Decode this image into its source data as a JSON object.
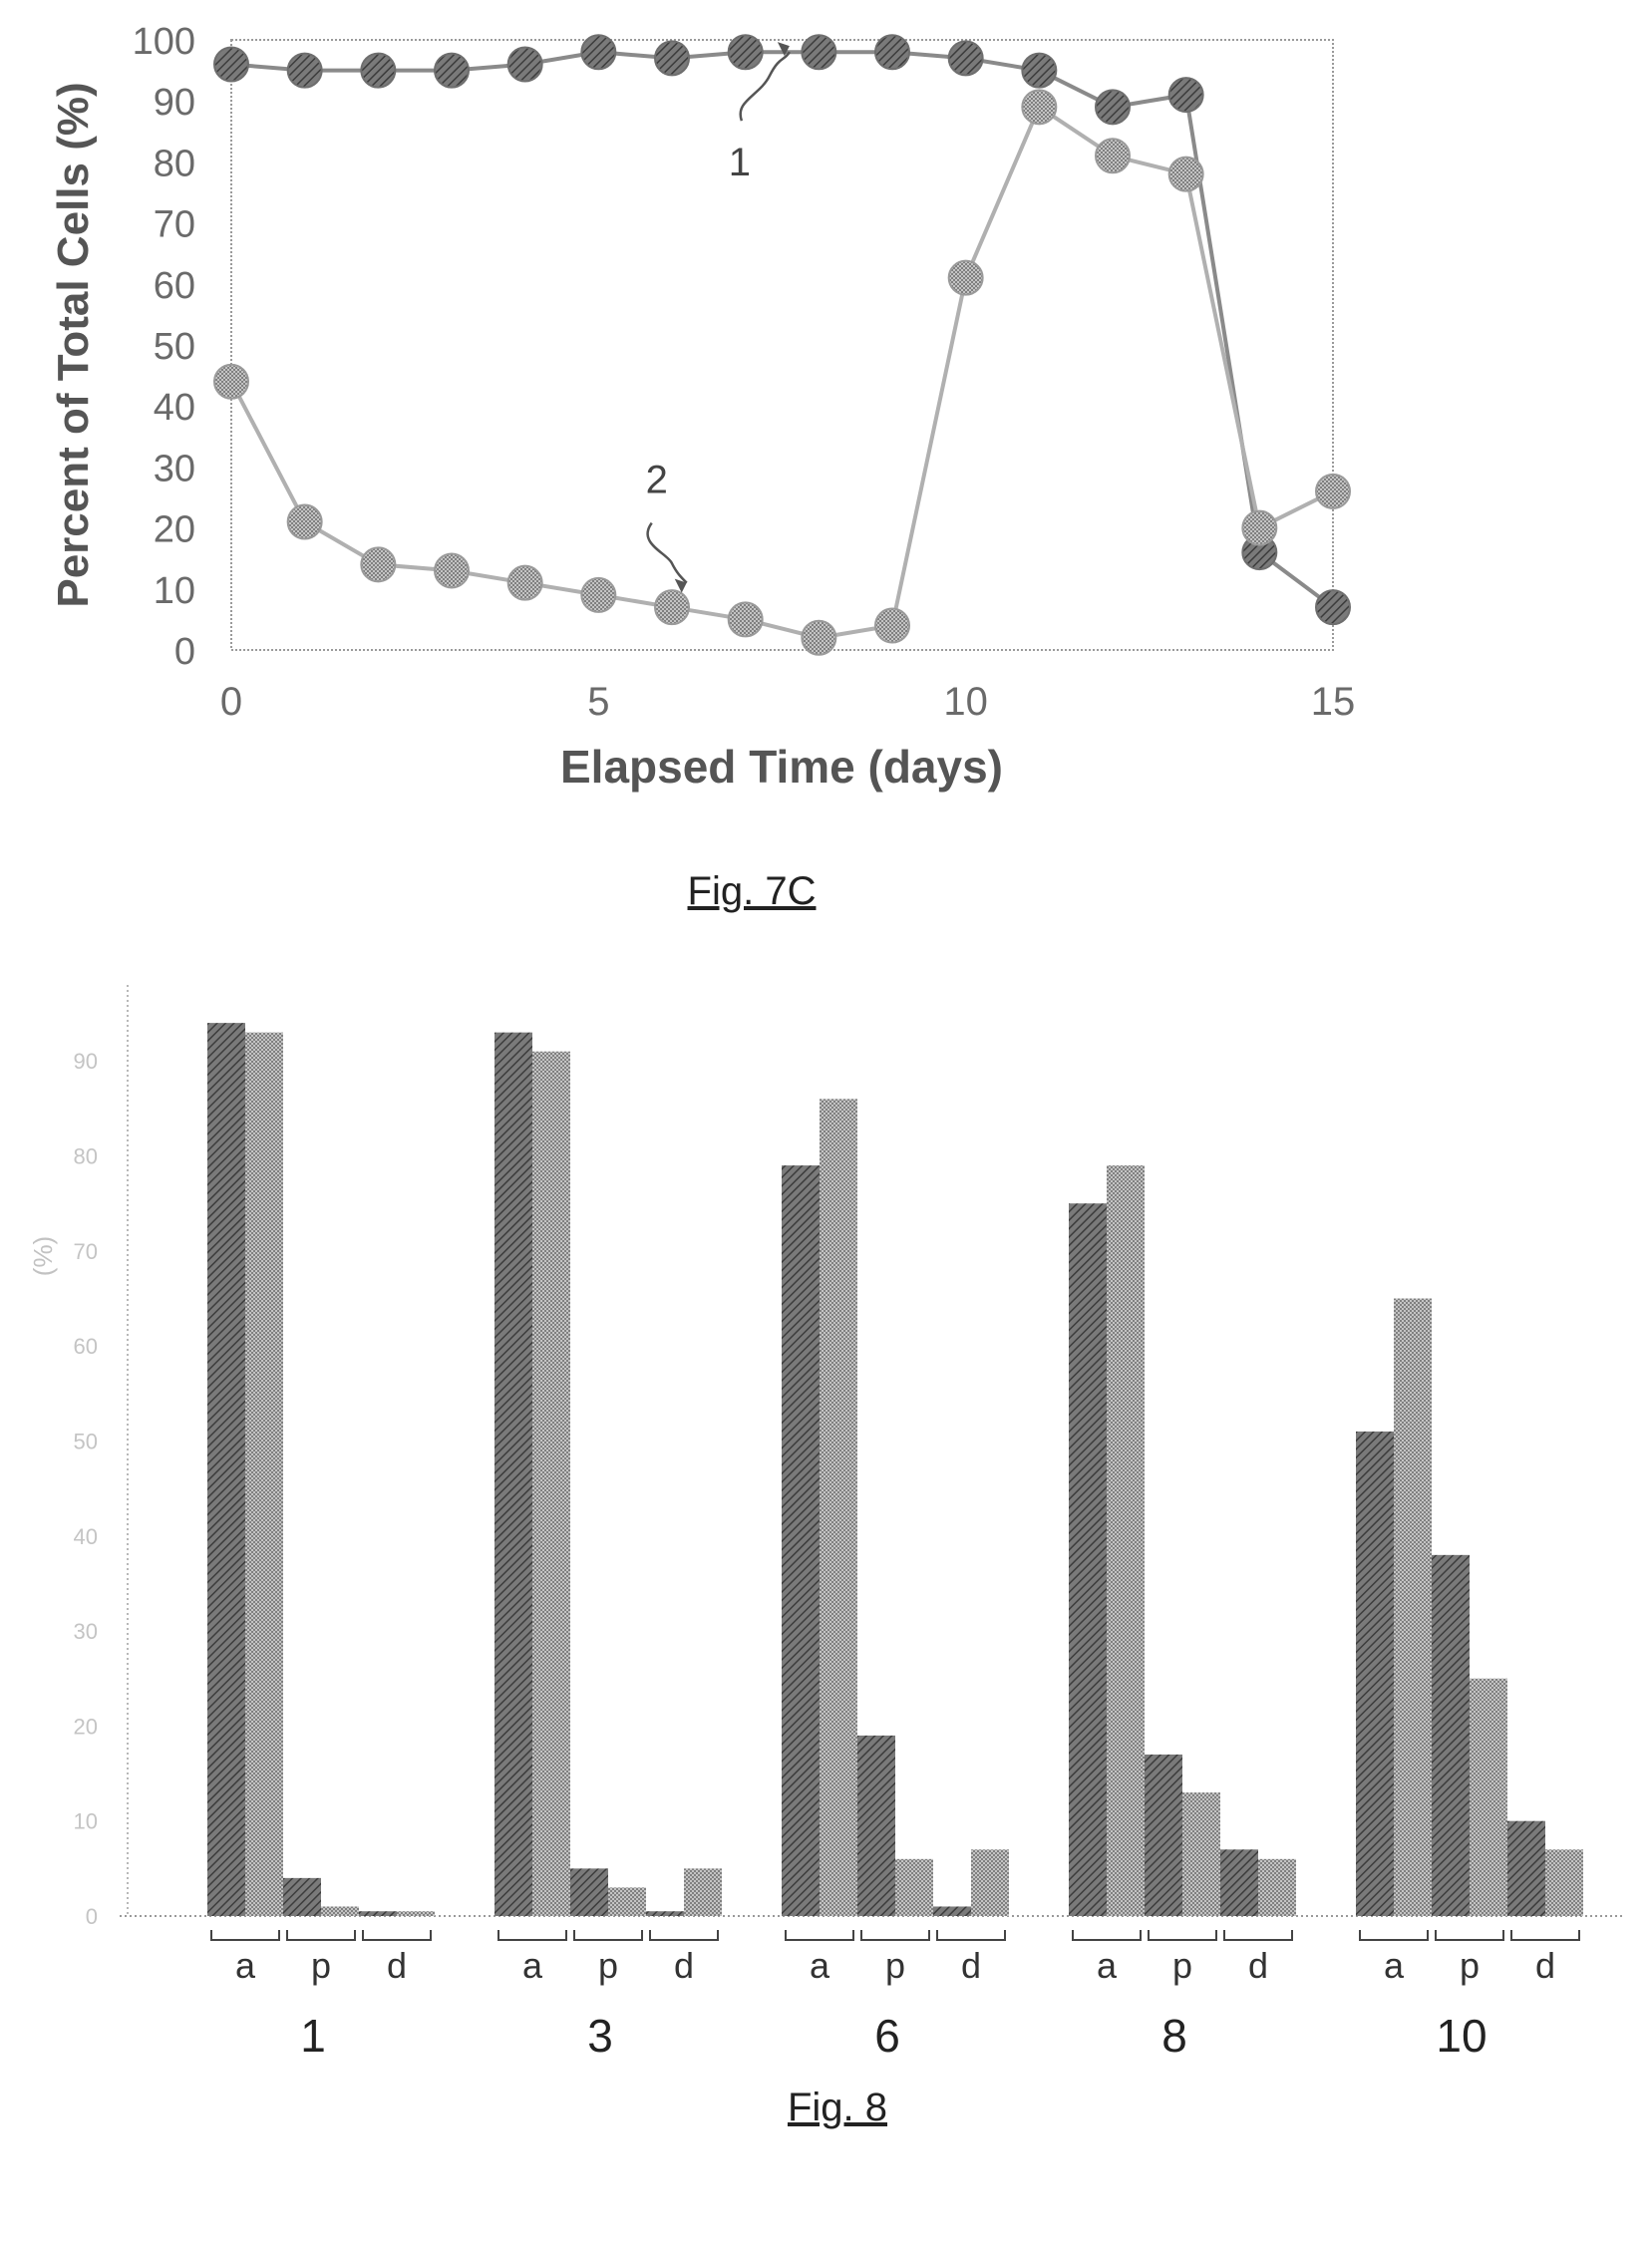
{
  "figures": {
    "fig7c_caption": "Fig. 7C",
    "fig8_caption": "Fig. 8"
  },
  "chart_data": [
    {
      "type": "line",
      "xlabel": "Elapsed Time (days)",
      "ylabel": "Percent of Total Cells (%)",
      "xlim": [
        0,
        15
      ],
      "ylim": [
        0,
        100
      ],
      "x_ticks": [
        0,
        5,
        10,
        15
      ],
      "y_ticks": [
        0,
        10,
        20,
        30,
        40,
        50,
        60,
        70,
        80,
        90,
        100
      ],
      "grid": false,
      "colors": {
        "series_1": "#8a8a8a",
        "series_2": "#b0b0b0"
      },
      "series": [
        {
          "name": "1",
          "points": [
            [
              0,
              96
            ],
            [
              1,
              95
            ],
            [
              2,
              95
            ],
            [
              3,
              95
            ],
            [
              4,
              96
            ],
            [
              5,
              98
            ],
            [
              6,
              97
            ],
            [
              7,
              98
            ],
            [
              8,
              98
            ],
            [
              9,
              98
            ],
            [
              10,
              97
            ],
            [
              11,
              95
            ],
            [
              12,
              89
            ],
            [
              13,
              91
            ],
            [
              14,
              16
            ],
            [
              15,
              7
            ]
          ]
        },
        {
          "name": "2",
          "points": [
            [
              0,
              44
            ],
            [
              1,
              21
            ],
            [
              2,
              14
            ],
            [
              3,
              13
            ],
            [
              4,
              11
            ],
            [
              5,
              9
            ],
            [
              6,
              7
            ],
            [
              7,
              5
            ],
            [
              8,
              2
            ],
            [
              9,
              4
            ],
            [
              10,
              61
            ],
            [
              11,
              89
            ],
            [
              12,
              81
            ],
            [
              13,
              78
            ],
            [
              14,
              20
            ],
            [
              15,
              26
            ]
          ]
        }
      ],
      "annotations": [
        {
          "label": "1",
          "x": 7.6,
          "y": 99
        },
        {
          "label": "2",
          "x": 6.2,
          "y": 11
        }
      ]
    },
    {
      "type": "bar",
      "ylabel": "(%)",
      "ylim": [
        0,
        98
      ],
      "y_ticks": [
        0,
        10,
        20,
        30,
        40,
        50,
        60,
        70,
        80,
        90
      ],
      "y_tick_labels": [
        "0",
        "10",
        "20",
        "30",
        "40",
        "50",
        "60",
        "70",
        "80",
        "90"
      ],
      "grid": false,
      "colors": {
        "dark": "#5c5c5c",
        "light": "#9d9d9d"
      },
      "subgroup_labels": [
        "a",
        "p",
        "d"
      ],
      "groups": [
        {
          "label": "1",
          "values": [
            [
              94,
              93
            ],
            [
              4,
              1
            ],
            [
              0.5,
              0.5
            ]
          ]
        },
        {
          "label": "3",
          "values": [
            [
              93,
              91
            ],
            [
              5,
              3
            ],
            [
              0.5,
              5
            ]
          ]
        },
        {
          "label": "6",
          "values": [
            [
              79,
              86
            ],
            [
              19,
              6
            ],
            [
              1,
              7
            ]
          ]
        },
        {
          "label": "8",
          "values": [
            [
              75,
              79
            ],
            [
              17,
              13
            ],
            [
              7,
              6
            ]
          ]
        },
        {
          "label": "10",
          "values": [
            [
              51,
              65
            ],
            [
              38,
              25
            ],
            [
              10,
              7
            ]
          ]
        }
      ]
    }
  ]
}
